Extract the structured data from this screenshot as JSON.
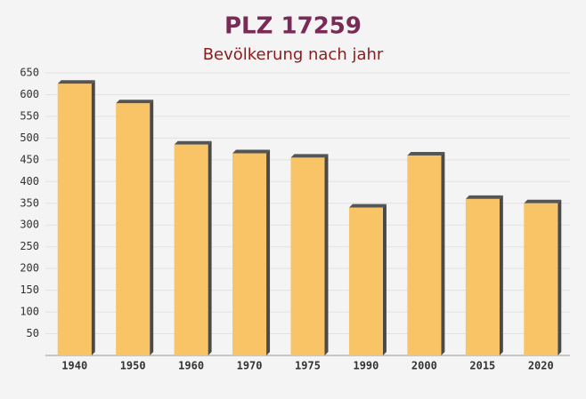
{
  "chart_data": {
    "type": "bar",
    "title": "PLZ 17259",
    "subtitle": "Bevölkerung nach jahr",
    "categories": [
      "1940",
      "1950",
      "1960",
      "1970",
      "1975",
      "1990",
      "2000",
      "2015",
      "2020"
    ],
    "values": [
      625,
      580,
      485,
      465,
      455,
      340,
      460,
      360,
      350
    ],
    "color": "#f9c466",
    "ylim": [
      0,
      650
    ],
    "yticks": [
      50,
      100,
      150,
      200,
      250,
      300,
      350,
      400,
      450,
      500,
      550,
      600,
      650
    ],
    "grid": true
  }
}
